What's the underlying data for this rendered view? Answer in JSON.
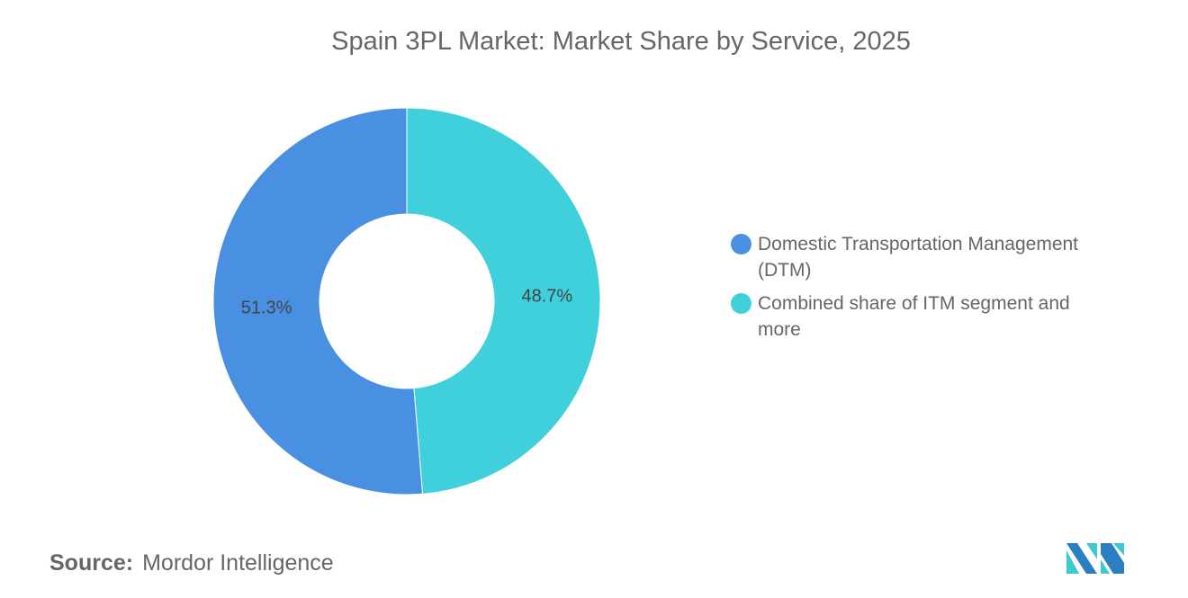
{
  "chart_data": {
    "type": "pie",
    "variant": "donut",
    "title": "Spain 3PL Market: Market Share by Service, 2025",
    "slices": [
      {
        "label": "Domestic Transportation Management (DTM)",
        "value": 51.3,
        "display": "51.3%",
        "color": "#4a90e2"
      },
      {
        "label": "Combined share of ITM segment and more",
        "value": 48.7,
        "display": "48.7%",
        "color": "#40d0db"
      }
    ],
    "legend_position": "right"
  },
  "source": {
    "label": "Source:",
    "value": "Mordor Intelligence"
  },
  "logo": {
    "text": "Mordor Intelligence",
    "colors": [
      "#2a7fc0",
      "#40c8d0"
    ]
  }
}
